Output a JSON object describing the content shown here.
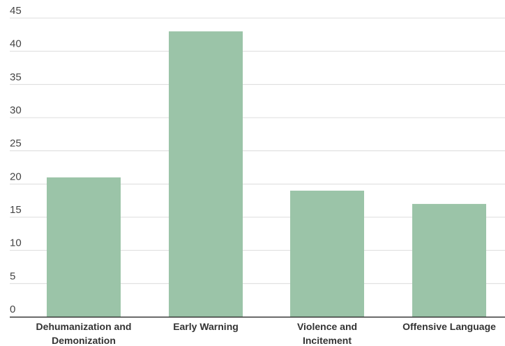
{
  "chart_data": {
    "type": "bar",
    "categories": [
      [
        "Dehumanization and",
        "Demonization"
      ],
      [
        "Early Warning"
      ],
      [
        "Violence and",
        "Incitement"
      ],
      [
        "Offensive Language"
      ]
    ],
    "values": [
      21,
      43,
      19,
      17
    ],
    "ylim": [
      0,
      45
    ],
    "yticks": [
      0,
      5,
      10,
      15,
      20,
      25,
      30,
      35,
      40,
      45
    ],
    "grid": true,
    "bar_color": "#9bc4a8",
    "title": "",
    "xlabel": "",
    "ylabel": ""
  }
}
